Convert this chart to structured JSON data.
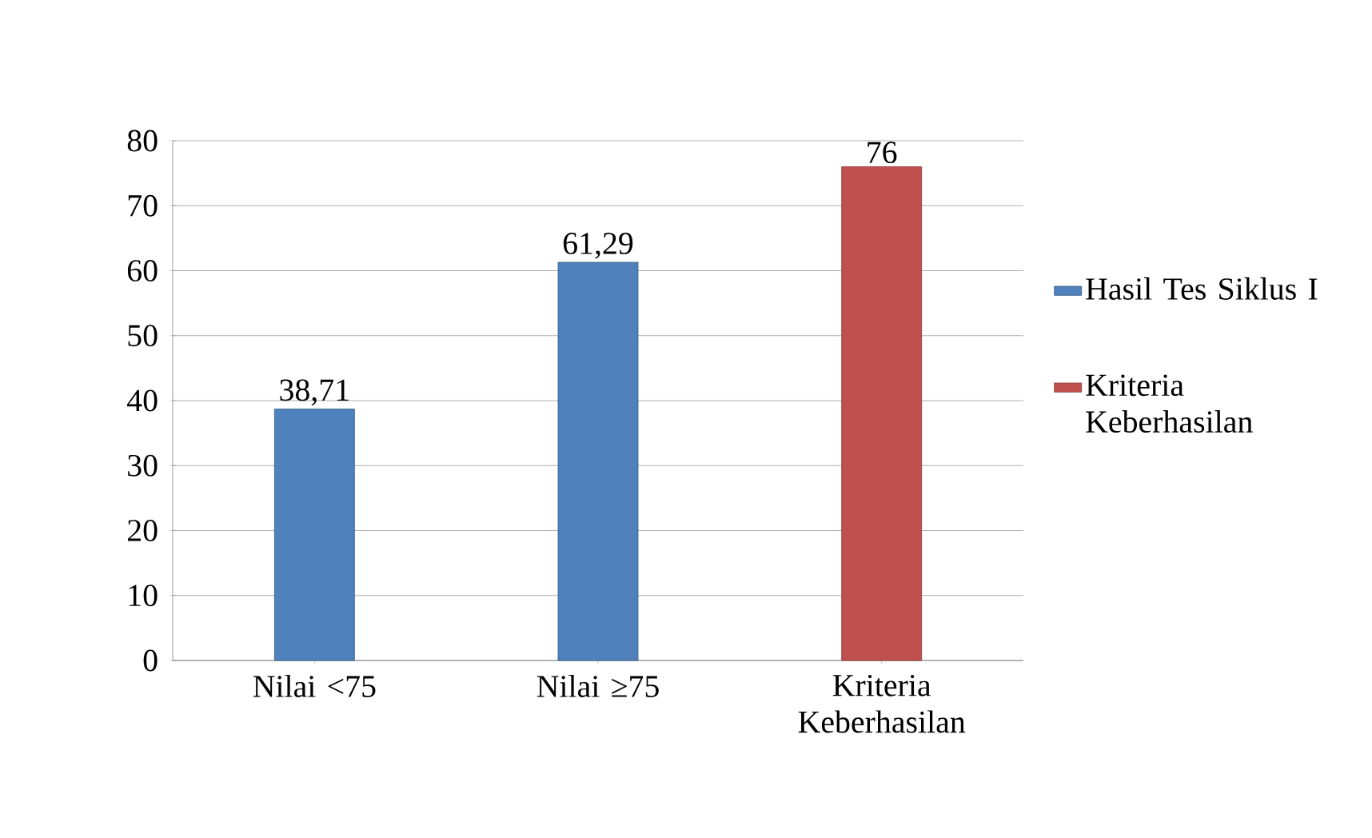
{
  "chart_data": {
    "type": "bar",
    "categories": [
      "Nilai <75",
      "Nilai ≥75",
      "Kriteria Keberhasilan"
    ],
    "series": [
      {
        "name": "Hasil Tes Siklus I",
        "color": "#4f81bd",
        "values": [
          38.71,
          61.29,
          null
        ],
        "value_labels": [
          "38,71",
          "61,29",
          null
        ]
      },
      {
        "name": "Kriteria Keberhasilan",
        "color": "#c0504d",
        "values": [
          null,
          null,
          76
        ],
        "value_labels": [
          null,
          null,
          "76"
        ]
      }
    ],
    "ylim": [
      0,
      80
    ],
    "yticks": [
      0,
      10,
      20,
      30,
      40,
      50,
      60,
      70,
      80
    ],
    "grid": "y",
    "legend": "right"
  }
}
